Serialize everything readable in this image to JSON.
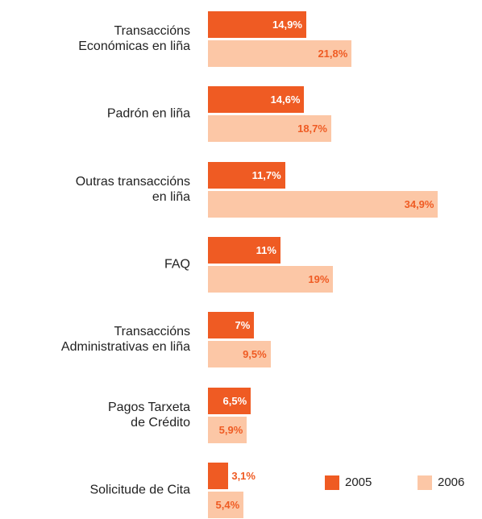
{
  "chart_data": {
    "type": "bar",
    "orientation": "horizontal",
    "categories": [
      "Transaccións\nEconómicas en liña",
      "Padrón en liña",
      "Outras transaccións\nen liña",
      "FAQ",
      "Transaccións\nAdministrativas en liña",
      "Pagos Tarxeta\nde Crédito",
      "Solicitude de Cita"
    ],
    "series": [
      {
        "name": "2005",
        "color": "#ef5b23",
        "label_color": "#ffffff",
        "values": [
          14.9,
          14.6,
          11.7,
          11,
          7,
          6.5,
          3.1
        ],
        "value_labels": [
          "14,9%",
          "14,6%",
          "11,7%",
          "11%",
          "7%",
          "6,5%",
          "3,1%"
        ]
      },
      {
        "name": "2006",
        "color": "#fcc7a6",
        "label_color": "#ef5b23",
        "values": [
          21.8,
          18.7,
          34.9,
          19,
          9.5,
          5.9,
          5.4
        ],
        "value_labels": [
          "21,8%",
          "18,7%",
          "34,9%",
          "19%",
          "9,5%",
          "5,9%",
          "5,4%"
        ]
      }
    ],
    "legend": "bottom-right"
  }
}
